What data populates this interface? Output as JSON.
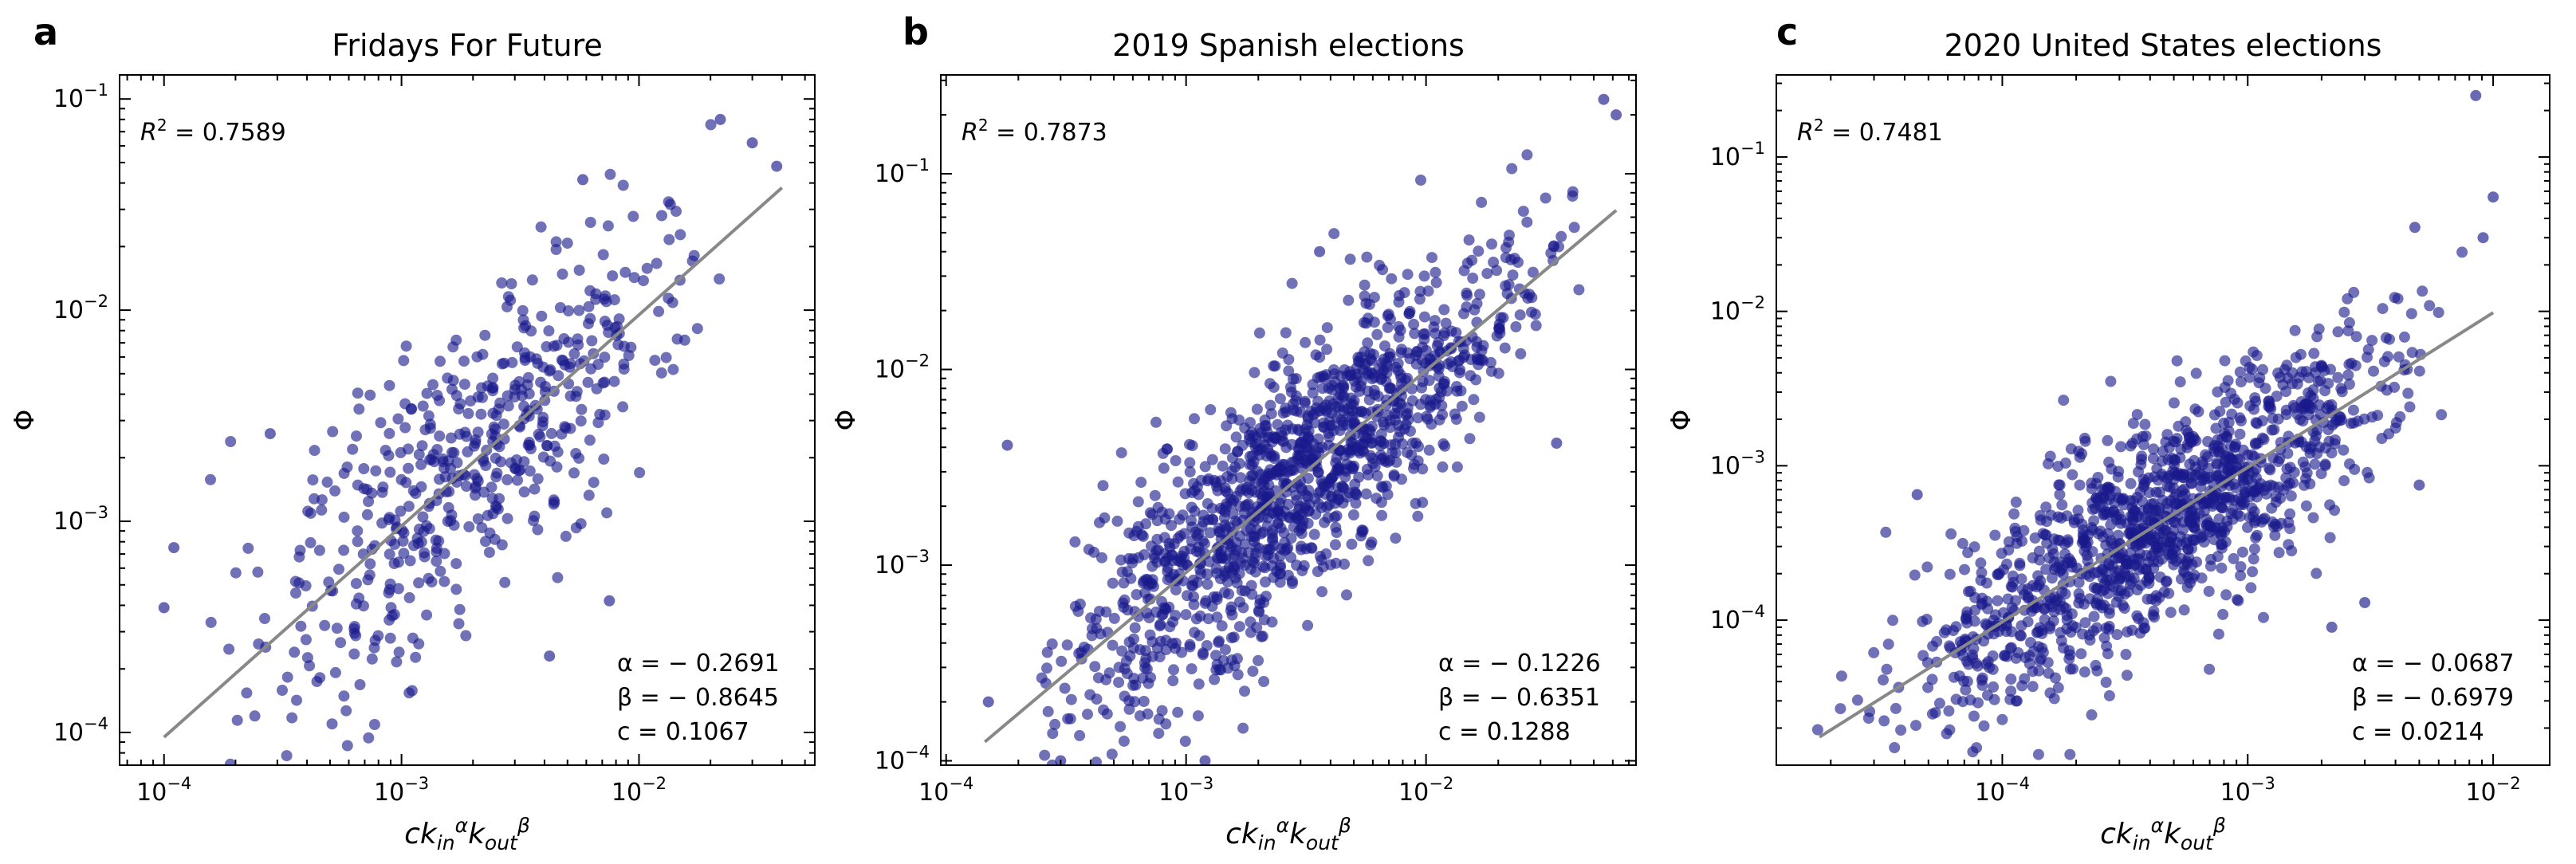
{
  "figure": {
    "note": "Three log-log scatter panels of Phi versus c*k_in^alpha*k_out^beta"
  },
  "chart_data": [
    {
      "type": "scatter",
      "letter": "a",
      "title": "Fridays For Future",
      "xlabel": {
        "base": "ck",
        "sub1": "in",
        "sup1": "α",
        "mid": "k",
        "sub2": "out",
        "sup2": "β"
      },
      "ylabel": "Φ",
      "xscale": "log",
      "yscale": "log",
      "xlim": [
        6.5e-05,
        0.055
      ],
      "ylim": [
        7e-05,
        0.13
      ],
      "xticks": [
        {
          "v": 0.0001,
          "exp": "−4"
        },
        {
          "v": 0.001,
          "exp": "−3"
        },
        {
          "v": 0.01,
          "exp": "−2"
        }
      ],
      "yticks": [
        {
          "v": 0.0001,
          "exp": "−4"
        },
        {
          "v": 0.001,
          "exp": "−3"
        },
        {
          "v": 0.01,
          "exp": "−2"
        },
        {
          "v": 0.1,
          "exp": "−1"
        }
      ],
      "r2_label": "R",
      "r2_sup": "2",
      "r2_value": "= 0.7589",
      "alpha": -0.2691,
      "beta": -0.8645,
      "c": 0.1067,
      "alpha_text": "α = − 0.2691",
      "beta_text": "β = − 0.8645",
      "c_text": "c = 0.1067",
      "fit_line": {
        "x": [
          0.0001,
          0.04
        ],
        "y": [
          9.5e-05,
          0.038
        ]
      },
      "cloud": {
        "n": 520,
        "x_range": [
          0.0001,
          0.04
        ],
        "spread_low": 0.42,
        "spread_high": 0.28,
        "seed": 11
      },
      "points": [
        [
          0.0001,
          0.00039
        ],
        [
          0.00011,
          0.00075
        ],
        [
          0.00028,
          0.0026
        ],
        [
          0.0075,
          0.00042
        ],
        [
          0.003,
          0.0042
        ],
        [
          0.022,
          0.08
        ],
        [
          0.03,
          0.062
        ],
        [
          0.038,
          0.048
        ],
        [
          0.0058,
          0.0415
        ],
        [
          0.0042,
          0.00023
        ]
      ]
    },
    {
      "type": "scatter",
      "letter": "b",
      "title": "2019 Spanish elections",
      "xlabel": {
        "base": "ck",
        "sub1": "in",
        "sup1": "α",
        "mid": "k",
        "sub2": "out",
        "sup2": "β"
      },
      "ylabel": "Φ",
      "xscale": "log",
      "yscale": "log",
      "xlim": [
        9.5e-05,
        0.075
      ],
      "ylim": [
        9.5e-05,
        0.32
      ],
      "xticks": [
        {
          "v": 0.0001,
          "exp": "−4"
        },
        {
          "v": 0.001,
          "exp": "−3"
        },
        {
          "v": 0.01,
          "exp": "−2"
        }
      ],
      "yticks": [
        {
          "v": 0.0001,
          "exp": "−4"
        },
        {
          "v": 0.001,
          "exp": "−3"
        },
        {
          "v": 0.01,
          "exp": "−2"
        },
        {
          "v": 0.1,
          "exp": "−1"
        }
      ],
      "r2_label": "R",
      "r2_sup": "2",
      "r2_value": "= 0.7873",
      "alpha": -0.1226,
      "beta": -0.6351,
      "c": 0.1288,
      "alpha_text": "α = − 0.1226",
      "beta_text": "β = − 0.6351",
      "c_text": "c = 0.1288",
      "fit_line": {
        "x": [
          0.000145,
          0.062
        ],
        "y": [
          0.000125,
          0.065
        ]
      },
      "cloud": {
        "n": 1300,
        "x_range": [
          0.000145,
          0.06
        ],
        "spread_low": 0.36,
        "spread_high": 0.26,
        "seed": 23
      },
      "points": [
        [
          0.00018,
          0.0041
        ],
        [
          0.00015,
          0.0002
        ],
        [
          0.0028,
          0.0062
        ],
        [
          0.0036,
          0.04
        ],
        [
          0.055,
          0.24
        ],
        [
          0.062,
          0.2
        ],
        [
          0.035,
          0.0042
        ],
        [
          0.0012,
          0.0001
        ],
        [
          0.0003,
          0.0001
        ],
        [
          0.0045,
          0.0025
        ]
      ]
    },
    {
      "type": "scatter",
      "letter": "c",
      "title": "2020 United States elections",
      "xlabel": {
        "base": "ck",
        "sub1": "in",
        "sup1": "α",
        "mid": "k",
        "sub2": "out",
        "sup2": "β"
      },
      "ylabel": "Φ",
      "xscale": "log",
      "yscale": "log",
      "xlim": [
        1.2e-05,
        0.017
      ],
      "ylim": [
        1.15e-05,
        0.34
      ],
      "xticks": [
        {
          "v": 0.0001,
          "exp": "−4"
        },
        {
          "v": 0.001,
          "exp": "−3"
        },
        {
          "v": 0.01,
          "exp": "−2"
        }
      ],
      "yticks": [
        {
          "v": 0.0001,
          "exp": "−4"
        },
        {
          "v": 0.001,
          "exp": "−3"
        },
        {
          "v": 0.01,
          "exp": "−2"
        },
        {
          "v": 0.1,
          "exp": "−1"
        }
      ],
      "r2_label": "R",
      "r2_sup": "2",
      "r2_value": "= 0.7481",
      "alpha": -0.0687,
      "beta": -0.6979,
      "c": 0.0214,
      "alpha_text": "α = − 0.0687",
      "beta_text": "β = − 0.6979",
      "c_text": "c = 0.0214",
      "fit_line": {
        "x": [
          1.8e-05,
          0.01
        ],
        "y": [
          1.75e-05,
          0.0098
        ]
      },
      "cloud": {
        "n": 1250,
        "x_range": [
          1.8e-05,
          0.0098
        ],
        "spread_low": 0.38,
        "spread_high": 0.3,
        "seed": 37
      },
      "points": [
        [
          0.0085,
          0.25
        ],
        [
          0.01,
          0.055
        ],
        [
          0.0048,
          0.035
        ],
        [
          4.5e-05,
          0.00065
        ],
        [
          0.0022,
          9e-05
        ],
        [
          0.003,
          0.00013
        ],
        [
          0.005,
          0.00075
        ],
        [
          0.0091,
          0.03
        ]
      ]
    }
  ]
}
